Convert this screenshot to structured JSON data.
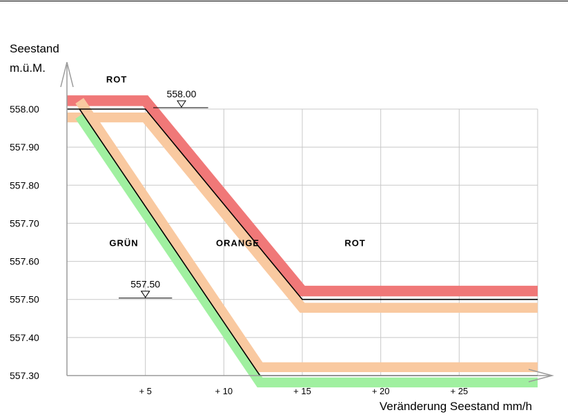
{
  "chart_data": {
    "type": "line",
    "xlabel": "Veränderung Seestand mm/h",
    "ylabel_line1": "Seestand",
    "ylabel_line2": "m.ü.M.",
    "xlim": [
      0,
      30
    ],
    "ylim": [
      557.3,
      558.0
    ],
    "grid": true,
    "x_ticks": [
      {
        "value": 5,
        "label": "+ 5"
      },
      {
        "value": 10,
        "label": "+ 10"
      },
      {
        "value": 15,
        "label": "+ 15"
      },
      {
        "value": 20,
        "label": "+ 20"
      },
      {
        "value": 25,
        "label": "+ 25"
      }
    ],
    "y_ticks": [
      {
        "value": 558.0,
        "label": "558.00"
      },
      {
        "value": 557.9,
        "label": "557.90"
      },
      {
        "value": 557.8,
        "label": "557.80"
      },
      {
        "value": 557.7,
        "label": "557.70"
      },
      {
        "value": 557.6,
        "label": "557.60"
      },
      {
        "value": 557.5,
        "label": "557.50"
      },
      {
        "value": 557.4,
        "label": "557.40"
      },
      {
        "value": 557.3,
        "label": "557.30"
      }
    ],
    "series": [
      {
        "color": "#000000",
        "points": [
          [
            0,
            558.0
          ],
          [
            5,
            558.0
          ],
          [
            15,
            557.5
          ],
          [
            30,
            557.5
          ]
        ]
      },
      {
        "color": "#000000",
        "points": [
          [
            0.8,
            558.0
          ],
          [
            12.3,
            557.3
          ],
          [
            30,
            557.3
          ]
        ]
      }
    ],
    "bands": [
      {
        "color": "#f07878",
        "points": [
          [
            0,
            558.0
          ],
          [
            5,
            558.0
          ],
          [
            15,
            557.5
          ],
          [
            30,
            557.5
          ]
        ],
        "offset_y": 0.022,
        "width_y": 0.028
      },
      {
        "color": "#f9c9a0",
        "points": [
          [
            0,
            558.0
          ],
          [
            5,
            558.0
          ],
          [
            15,
            557.5
          ],
          [
            30,
            557.5
          ]
        ],
        "offset_y": -0.022,
        "width_y": 0.026
      },
      {
        "color": "#a0f0a0",
        "points": [
          [
            0.8,
            558.0
          ],
          [
            12.3,
            557.3
          ],
          [
            30,
            557.3
          ]
        ],
        "offset_y": -0.018,
        "width_y": 0.026
      },
      {
        "color": "#f9c9a0",
        "points": [
          [
            0.8,
            558.0
          ],
          [
            12.3,
            557.3
          ],
          [
            30,
            557.3
          ]
        ],
        "offset_y": 0.022,
        "width_y": 0.026
      }
    ],
    "zones": [
      {
        "label": "ROT",
        "x": 2.5,
        "y": 558.07
      },
      {
        "label": "GRÜN",
        "x": 2.7,
        "y": 557.64
      },
      {
        "label": "ORANGE",
        "x": 9.5,
        "y": 557.64
      },
      {
        "label": "ROT",
        "x": 17.7,
        "y": 557.64
      }
    ],
    "level_markers": [
      {
        "label": "558.00",
        "y": 558.0,
        "x_from": 5.5,
        "x_to": 9.0,
        "x_tri": 7.3
      },
      {
        "label": "557.50",
        "y": 557.5,
        "x_from": 3.3,
        "x_to": 6.7,
        "x_tri": 5.0
      }
    ]
  }
}
